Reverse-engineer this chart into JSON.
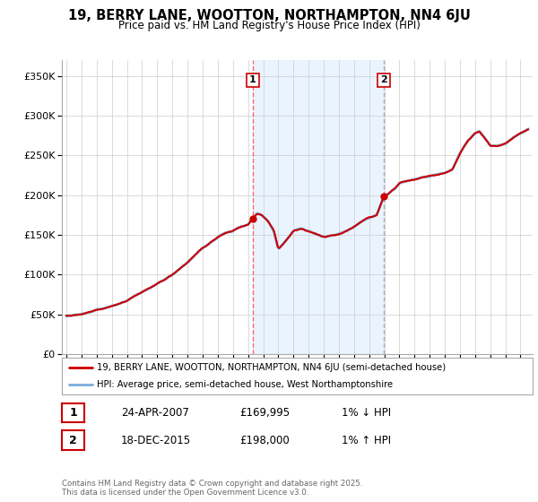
{
  "title": "19, BERRY LANE, WOOTTON, NORTHAMPTON, NN4 6JU",
  "subtitle": "Price paid vs. HM Land Registry's House Price Index (HPI)",
  "ylim": [
    0,
    370000
  ],
  "xlim_start": 1994.7,
  "xlim_end": 2025.8,
  "hpi_color": "#7aabdb",
  "price_color": "#cc0000",
  "dashed_color": "#ff6666",
  "dashed2_color": "#aaaacc",
  "marker1_year": 2007.31,
  "marker2_year": 2015.97,
  "marker1_price": 169995,
  "marker2_price": 198000,
  "annotation1_label": "1",
  "annotation2_label": "2",
  "legend_label1": "19, BERRY LANE, WOOTTON, NORTHAMPTON, NN4 6JU (semi-detached house)",
  "legend_label2": "HPI: Average price, semi-detached house, West Northamptonshire",
  "table_row1": [
    "1",
    "24-APR-2007",
    "£169,995",
    "1% ↓ HPI"
  ],
  "table_row2": [
    "2",
    "18-DEC-2015",
    "£198,000",
    "1% ↑ HPI"
  ],
  "footer": "Contains HM Land Registry data © Crown copyright and database right 2025.\nThis data is licensed under the Open Government Licence v3.0.",
  "background_color": "#ffffff",
  "grid_color": "#cccccc"
}
